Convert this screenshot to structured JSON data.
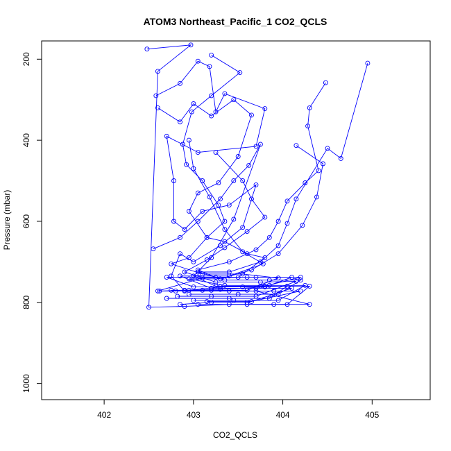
{
  "chart_data": {
    "type": "line",
    "title": "ATOM3 Northeast_Pacific_1 CO2_QCLS",
    "xlabel": "CO2_QCLS",
    "ylabel": "Pressure (mbar)",
    "xlim": [
      401.3,
      405.65
    ],
    "ylim": [
      1040,
      155
    ],
    "y_axis_inverted": true,
    "x_ticks": [
      402,
      403,
      404,
      405
    ],
    "y_ticks": [
      200,
      400,
      600,
      800,
      1000
    ],
    "grid": false,
    "legend": "none",
    "marker": "open-circle",
    "series_color": "#0000ff",
    "series": [
      {
        "name": "",
        "points": [
          [
            402.48,
            175
          ],
          [
            402.97,
            165
          ],
          [
            402.6,
            230
          ],
          [
            402.5,
            812
          ],
          [
            402.9,
            810
          ],
          [
            403.4,
            805
          ],
          [
            403.9,
            805
          ],
          [
            404.3,
            805
          ],
          [
            403.7,
            772
          ],
          [
            403.2,
            770
          ],
          [
            402.8,
            772
          ],
          [
            402.6,
            772
          ],
          [
            403.1,
            740
          ],
          [
            403.6,
            738
          ],
          [
            404.2,
            738
          ],
          [
            403.8,
            760
          ],
          [
            403.3,
            762
          ],
          [
            402.95,
            770
          ]
        ]
      },
      {
        "name": "",
        "points": [
          [
            402.58,
            290
          ],
          [
            402.85,
            260
          ],
          [
            403.05,
            205
          ],
          [
            403.18,
            218
          ],
          [
            403.25,
            330
          ],
          [
            403.35,
            285
          ],
          [
            403.8,
            322
          ],
          [
            403.7,
            415
          ],
          [
            403.05,
            430
          ],
          [
            402.7,
            390
          ],
          [
            402.78,
            500
          ],
          [
            402.78,
            600
          ],
          [
            402.9,
            620
          ],
          [
            403.1,
            575
          ],
          [
            403.4,
            560
          ],
          [
            403.7,
            510
          ],
          [
            403.55,
            615
          ],
          [
            403.3,
            660
          ],
          [
            403.0,
            700
          ],
          [
            402.85,
            680
          ],
          [
            402.75,
            735
          ],
          [
            402.9,
            772
          ],
          [
            403.4,
            772
          ],
          [
            403.9,
            772
          ],
          [
            404.2,
            772
          ],
          [
            403.6,
            800
          ],
          [
            403.2,
            800
          ],
          [
            402.85,
            805
          ]
        ]
      },
      {
        "name": "",
        "points": [
          [
            402.6,
            320
          ],
          [
            402.85,
            355
          ],
          [
            403.0,
            310
          ],
          [
            403.2,
            340
          ],
          [
            403.45,
            300
          ],
          [
            403.65,
            338
          ],
          [
            403.5,
            440
          ],
          [
            403.28,
            505
          ],
          [
            403.05,
            530
          ],
          [
            402.95,
            575
          ],
          [
            403.15,
            640
          ],
          [
            403.35,
            650
          ],
          [
            403.6,
            680
          ],
          [
            403.8,
            690
          ],
          [
            403.5,
            738
          ],
          [
            403.05,
            738
          ],
          [
            402.7,
            738
          ],
          [
            403.0,
            762
          ],
          [
            403.55,
            762
          ],
          [
            404.05,
            760
          ],
          [
            403.85,
            790
          ],
          [
            403.4,
            790
          ],
          [
            402.7,
            790
          ]
        ]
      },
      {
        "name": "",
        "points": [
          [
            404.48,
            258
          ],
          [
            404.3,
            320
          ],
          [
            404.28,
            365
          ],
          [
            404.4,
            475
          ],
          [
            404.25,
            505
          ],
          [
            404.05,
            550
          ],
          [
            403.95,
            600
          ],
          [
            403.85,
            640
          ],
          [
            403.7,
            670
          ],
          [
            403.4,
            700
          ],
          [
            403.05,
            720
          ],
          [
            403.25,
            738
          ],
          [
            403.7,
            738
          ],
          [
            404.1,
            738
          ],
          [
            403.8,
            762
          ],
          [
            403.3,
            768
          ],
          [
            402.9,
            770
          ],
          [
            402.62,
            772
          ]
        ]
      },
      {
        "name": "",
        "points": [
          [
            404.95,
            210
          ],
          [
            404.65,
            445
          ],
          [
            404.5,
            420
          ],
          [
            404.15,
            545
          ],
          [
            404.05,
            605
          ],
          [
            403.95,
            660
          ],
          [
            403.75,
            700
          ],
          [
            403.4,
            725
          ],
          [
            403.05,
            725
          ],
          [
            403.35,
            745
          ],
          [
            403.85,
            745
          ],
          [
            404.2,
            745
          ],
          [
            403.95,
            780
          ],
          [
            403.5,
            780
          ],
          [
            402.95,
            780
          ]
        ]
      },
      {
        "name": "",
        "points": [
          [
            402.55,
            668
          ],
          [
            402.85,
            640
          ],
          [
            403.05,
            600
          ],
          [
            403.3,
            545
          ],
          [
            403.45,
            500
          ],
          [
            403.62,
            462
          ],
          [
            403.75,
            410
          ],
          [
            403.45,
            595
          ],
          [
            403.2,
            690
          ],
          [
            403.0,
            735
          ],
          [
            403.25,
            760
          ],
          [
            403.75,
            760
          ],
          [
            404.3,
            760
          ],
          [
            404.05,
            805
          ],
          [
            403.6,
            805
          ],
          [
            403.05,
            805
          ]
        ]
      },
      {
        "name": "",
        "points": [
          [
            403.2,
            190
          ],
          [
            403.52,
            233
          ],
          [
            403.2,
            290
          ],
          [
            402.98,
            330
          ],
          [
            402.88,
            410
          ],
          [
            402.92,
            460
          ],
          [
            403.1,
            500
          ],
          [
            403.28,
            560
          ],
          [
            403.35,
            600
          ],
          [
            403.15,
            640
          ],
          [
            402.95,
            690
          ],
          [
            402.75,
            705
          ],
          [
            403.1,
            730
          ],
          [
            403.55,
            730
          ],
          [
            403.95,
            740
          ],
          [
            403.6,
            770
          ],
          [
            403.1,
            770
          ],
          [
            402.75,
            770
          ]
        ]
      },
      {
        "name": "",
        "points": [
          [
            404.15,
            413
          ],
          [
            404.45,
            458
          ],
          [
            404.38,
            540
          ],
          [
            404.22,
            610
          ],
          [
            403.95,
            680
          ],
          [
            403.65,
            720
          ],
          [
            403.3,
            742
          ],
          [
            402.95,
            742
          ],
          [
            403.35,
            758
          ],
          [
            403.85,
            758
          ],
          [
            404.25,
            758
          ],
          [
            403.95,
            795
          ],
          [
            403.45,
            795
          ],
          [
            403.0,
            795
          ]
        ]
      },
      {
        "name": "",
        "points": [
          [
            403.25,
            430
          ],
          [
            403.55,
            500
          ],
          [
            403.65,
            545
          ],
          [
            403.8,
            590
          ],
          [
            403.6,
            625
          ],
          [
            403.35,
            665
          ],
          [
            403.15,
            695
          ],
          [
            402.9,
            725
          ],
          [
            403.25,
            750
          ],
          [
            403.75,
            750
          ],
          [
            404.15,
            748
          ],
          [
            403.7,
            785
          ],
          [
            403.2,
            785
          ],
          [
            402.82,
            785
          ]
        ]
      },
      {
        "name": "",
        "points": [
          [
            402.95,
            400
          ],
          [
            403.0,
            470
          ],
          [
            403.18,
            540
          ],
          [
            403.35,
            620
          ],
          [
            403.55,
            675
          ],
          [
            403.78,
            705
          ],
          [
            403.4,
            735
          ],
          [
            402.85,
            735
          ],
          [
            403.2,
            765
          ],
          [
            403.7,
            765
          ],
          [
            404.1,
            765
          ],
          [
            403.65,
            798
          ],
          [
            403.15,
            798
          ]
        ]
      }
    ]
  }
}
